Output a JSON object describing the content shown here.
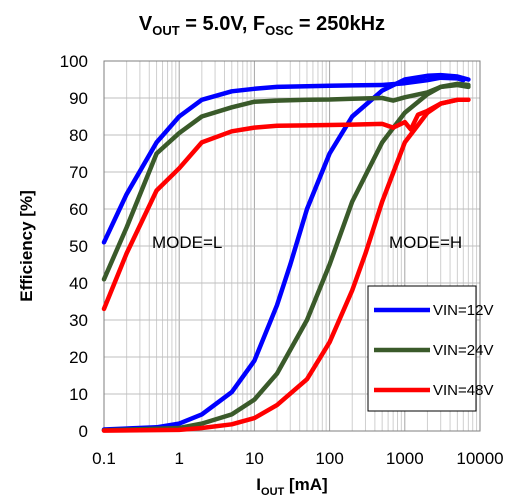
{
  "chart_data": {
    "type": "line",
    "title": {
      "v_main": "V",
      "v_sub": "OUT",
      "v_rest": " = 5.0V, F",
      "f_sub": "OSC",
      "f_rest": " = 250kHz"
    },
    "xlabel": {
      "main": "I",
      "sub": "OUT",
      "rest": " [mA]"
    },
    "ylabel": "Efficiency [%]",
    "x_scale": "log",
    "xlim": [
      0.1,
      10000
    ],
    "ylim": [
      0,
      100
    ],
    "x_ticks": [
      "0.1",
      "1",
      "10",
      "100",
      "1000",
      "10000"
    ],
    "y_ticks": [
      "0",
      "10",
      "20",
      "30",
      "40",
      "50",
      "60",
      "70",
      "80",
      "90",
      "100"
    ],
    "grid": true,
    "annotations": [
      "MODE=L",
      "MODE=H"
    ],
    "legend_position": "bottom-right",
    "series": [
      {
        "name": "VIN=12V",
        "color": "#0000ff",
        "mode_l": [
          [
            0.1,
            51
          ],
          [
            0.2,
            64
          ],
          [
            0.5,
            78
          ],
          [
            1,
            85
          ],
          [
            2,
            89.5
          ],
          [
            5,
            91.8
          ],
          [
            10,
            92.5
          ],
          [
            20,
            93
          ],
          [
            50,
            93.2
          ],
          [
            100,
            93.3
          ],
          [
            200,
            93.4
          ],
          [
            500,
            93.5
          ],
          [
            1000,
            94
          ],
          [
            2000,
            94.8
          ],
          [
            3000,
            95.5
          ],
          [
            5000,
            95.3
          ],
          [
            6000,
            94.8
          ]
        ],
        "mode_h": [
          [
            0.1,
            0.4
          ],
          [
            0.5,
            1
          ],
          [
            1,
            2
          ],
          [
            2,
            4.5
          ],
          [
            5,
            10.5
          ],
          [
            10,
            19
          ],
          [
            20,
            34
          ],
          [
            30,
            45
          ],
          [
            50,
            60
          ],
          [
            100,
            75
          ],
          [
            200,
            85
          ],
          [
            500,
            92
          ],
          [
            1000,
            95
          ],
          [
            2000,
            96
          ],
          [
            3000,
            96.2
          ],
          [
            5000,
            95.8
          ],
          [
            7000,
            95
          ]
        ]
      },
      {
        "name": "VIN=24V",
        "color": "#3a5a2a",
        "mode_l": [
          [
            0.1,
            41
          ],
          [
            0.2,
            55
          ],
          [
            0.5,
            75
          ],
          [
            1,
            80.5
          ],
          [
            2,
            85
          ],
          [
            5,
            87.5
          ],
          [
            10,
            89
          ],
          [
            20,
            89.3
          ],
          [
            50,
            89.5
          ],
          [
            100,
            89.6
          ],
          [
            200,
            89.8
          ],
          [
            500,
            90
          ],
          [
            700,
            89.3
          ],
          [
            1000,
            90.2
          ],
          [
            2000,
            91.5
          ],
          [
            3000,
            93
          ],
          [
            5000,
            93.5
          ],
          [
            7000,
            93
          ]
        ],
        "mode_h": [
          [
            0.1,
            0.2
          ],
          [
            1,
            0.8
          ],
          [
            2,
            2
          ],
          [
            5,
            4.5
          ],
          [
            10,
            8.5
          ],
          [
            20,
            15.5
          ],
          [
            50,
            30
          ],
          [
            100,
            45
          ],
          [
            200,
            62
          ],
          [
            500,
            78
          ],
          [
            1000,
            86
          ],
          [
            2000,
            91
          ],
          [
            3000,
            93
          ],
          [
            5000,
            93.8
          ],
          [
            7000,
            93.5
          ]
        ]
      },
      {
        "name": "VIN=48V",
        "color": "#ff0000",
        "mode_l": [
          [
            0.1,
            33
          ],
          [
            0.2,
            48
          ],
          [
            0.5,
            65
          ],
          [
            1,
            71
          ],
          [
            2,
            78
          ],
          [
            5,
            81
          ],
          [
            10,
            82
          ],
          [
            20,
            82.5
          ],
          [
            50,
            82.6
          ],
          [
            100,
            82.7
          ],
          [
            200,
            82.8
          ],
          [
            500,
            83
          ],
          [
            700,
            82
          ],
          [
            1000,
            83.5
          ],
          [
            1200,
            81.5
          ],
          [
            1500,
            85.5
          ],
          [
            2000,
            86.5
          ],
          [
            3000,
            88.5
          ],
          [
            5000,
            89.5
          ],
          [
            7000,
            89.5
          ]
        ],
        "mode_h": [
          [
            0.1,
            0.1
          ],
          [
            1,
            0.3
          ],
          [
            2,
            0.8
          ],
          [
            5,
            1.8
          ],
          [
            10,
            3.5
          ],
          [
            20,
            7
          ],
          [
            50,
            14
          ],
          [
            100,
            24
          ],
          [
            200,
            38
          ],
          [
            300,
            48
          ],
          [
            500,
            62
          ],
          [
            1000,
            78
          ],
          [
            2000,
            86
          ],
          [
            3000,
            88.5
          ],
          [
            5000,
            89.5
          ],
          [
            7000,
            89.5
          ]
        ]
      }
    ]
  }
}
